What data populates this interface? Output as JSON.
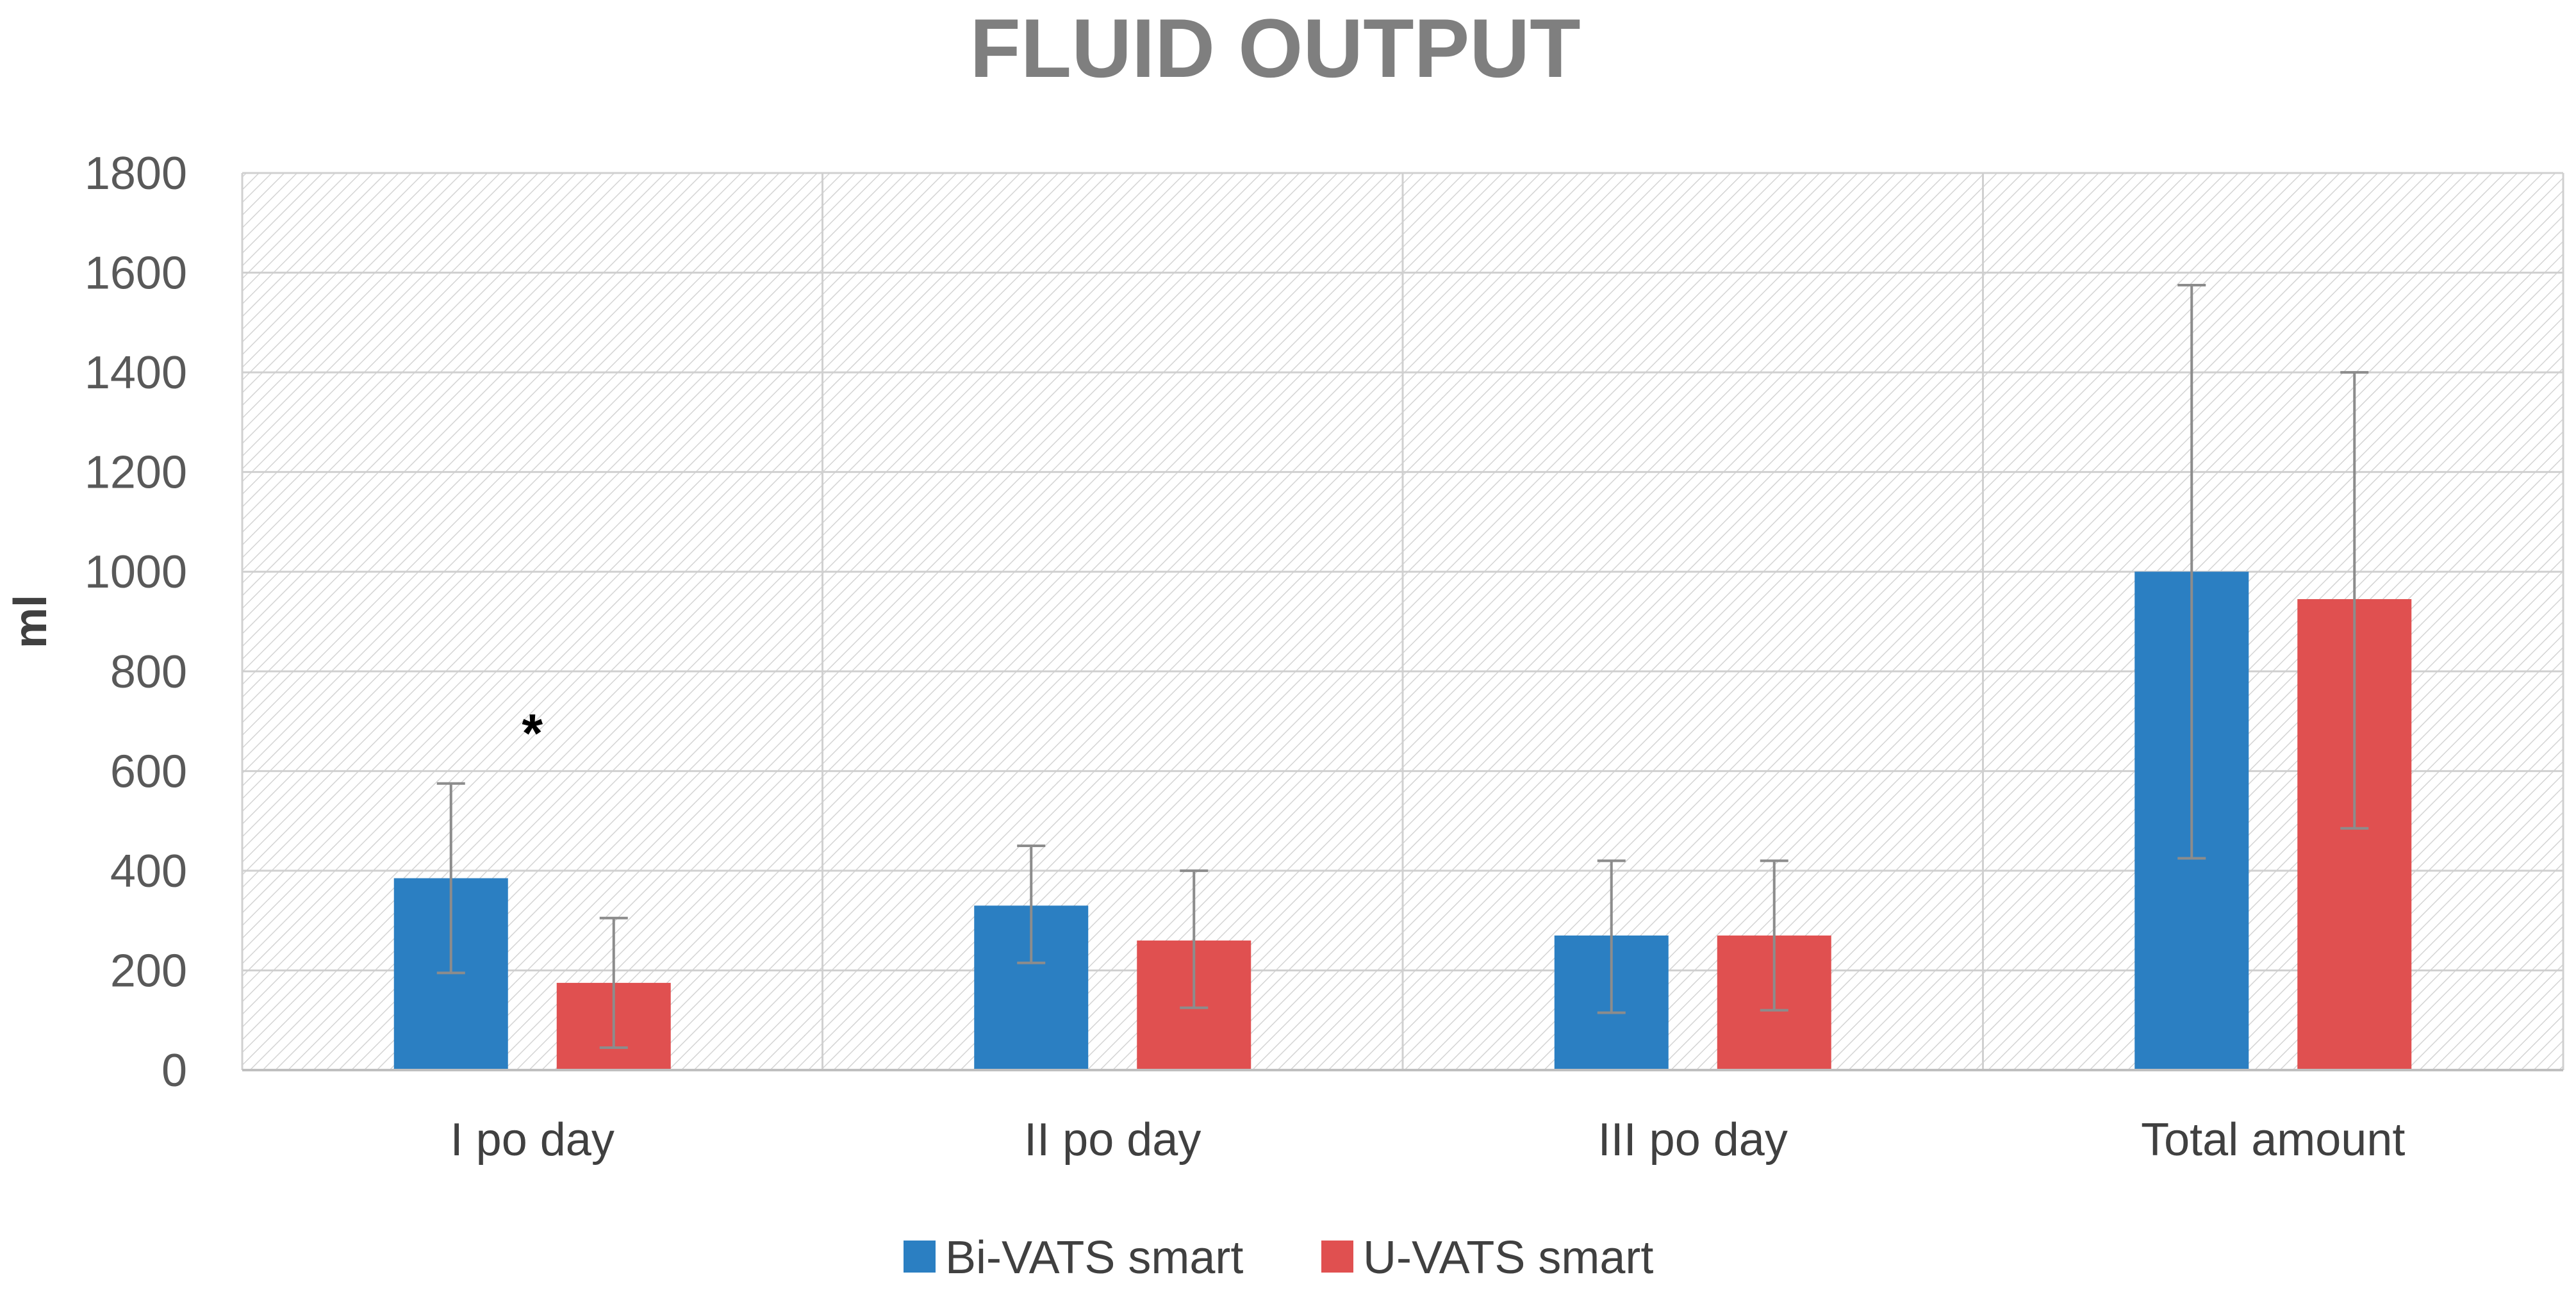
{
  "chart_data": {
    "type": "bar",
    "title": "FLUID OUTPUT",
    "xlabel": "",
    "ylabel": "ml",
    "ylim": [
      0,
      1800
    ],
    "yticks": [
      0,
      200,
      400,
      600,
      800,
      1000,
      1200,
      1400,
      1600,
      1800
    ],
    "categories": [
      "I po day",
      "II po day",
      "III po day",
      "Total amount"
    ],
    "series": [
      {
        "name": "Bi-VATS smart",
        "color": "#2b7fc2",
        "values": [
          385,
          330,
          270,
          1000
        ],
        "error_low": [
          195,
          215,
          115,
          425
        ],
        "error_high": [
          575,
          450,
          420,
          1575
        ]
      },
      {
        "name": "U-VATS smart",
        "color": "#e05050",
        "values": [
          175,
          260,
          270,
          945
        ],
        "error_low": [
          45,
          125,
          120,
          485
        ],
        "error_high": [
          305,
          400,
          420,
          1400
        ]
      }
    ],
    "annotations": [
      {
        "text": "*",
        "category_index": 0
      }
    ],
    "grid": true,
    "legend_position": "bottom"
  }
}
